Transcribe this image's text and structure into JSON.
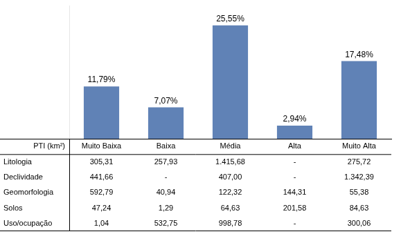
{
  "chart_data": {
    "type": "bar",
    "categories": [
      "Muito Baixa",
      "Baixa",
      "Média",
      "Alta",
      "Muito Alta"
    ],
    "values": [
      11.79,
      7.07,
      25.55,
      2.94,
      17.48
    ],
    "value_labels": [
      "11,79%",
      "7,07%",
      "25,55%",
      "2,94%",
      "17,48%"
    ],
    "color": "#6082B6",
    "ylim": [
      0,
      30
    ],
    "data_labels": true,
    "grid": false,
    "tick_labels": false,
    "table": {
      "header": "PTI (km²)",
      "rows": [
        {
          "name": "Litologia",
          "values": [
            "305,31",
            "257,93",
            "1.415,68",
            "-",
            "275,72"
          ]
        },
        {
          "name": "Declividade",
          "values": [
            "441,66",
            "-",
            "407,00",
            "-",
            "1.342,39"
          ]
        },
        {
          "name": "Geomorfologia",
          "values": [
            "592,79",
            "40,94",
            "122,32",
            "144,31",
            "55,38"
          ]
        },
        {
          "name": "Solos",
          "values": [
            "47,24",
            "1,29",
            "64,63",
            "201,58",
            "84,63"
          ]
        },
        {
          "name": "Uso/ocupação",
          "values": [
            "1,04",
            "532,75",
            "998,78",
            "-",
            "300,06"
          ]
        }
      ]
    }
  }
}
